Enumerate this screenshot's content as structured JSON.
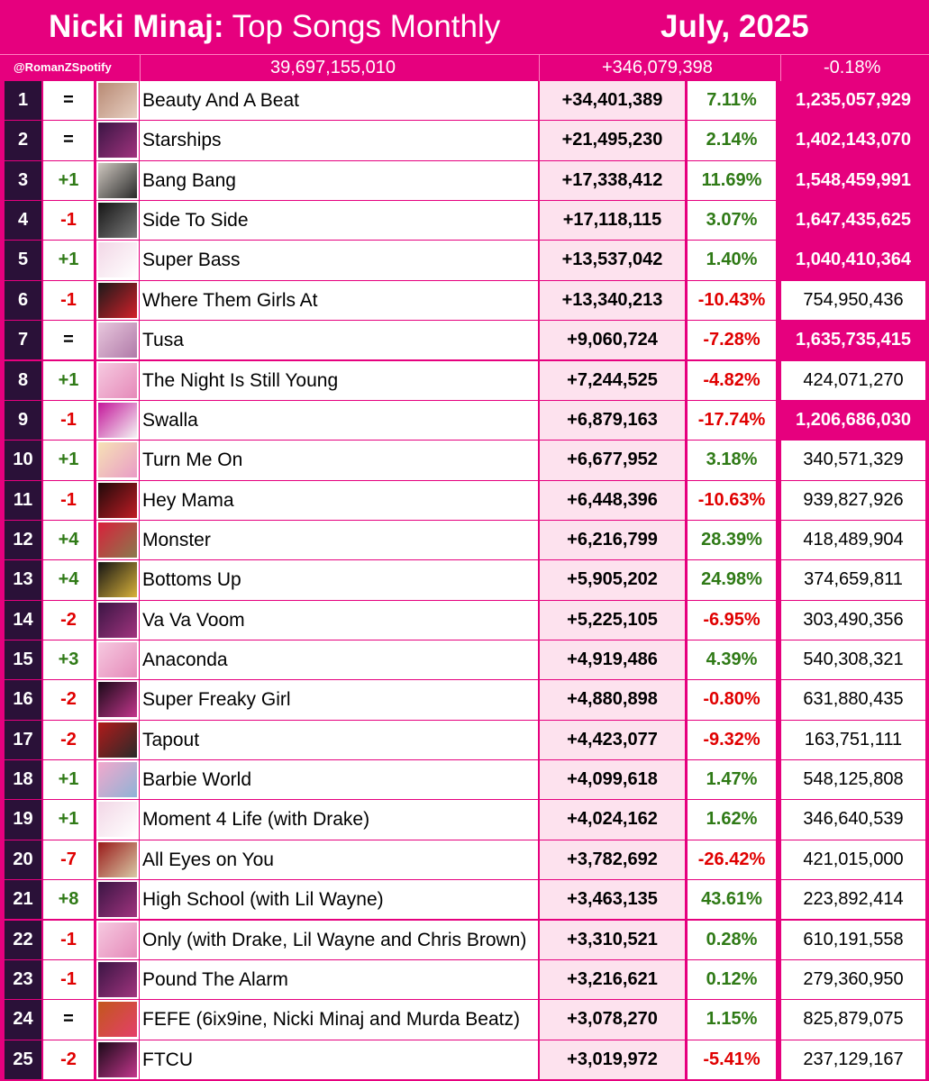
{
  "header": {
    "artist": "Nicki Minaj:",
    "subtitle": "Top Songs Monthly",
    "date": "July, 2025"
  },
  "summary": {
    "handle": "@RomanZSpotify",
    "total": "39,697,155,010",
    "gain": "+346,079,398",
    "change_pct": "-0.18%"
  },
  "colors": {
    "brand_pink": "#e6007e",
    "rank_bg": "#2a1138",
    "gain_bg": "#fde2ee",
    "positive": "#2f7a16",
    "negative": "#e00000"
  },
  "chart_data": {
    "type": "table",
    "columns": [
      "rank",
      "movement",
      "cover",
      "song",
      "monthly_gain",
      "change_pct",
      "total_streams"
    ],
    "rows": [
      {
        "rank": "1",
        "move": "=",
        "song": "Beauty And A Beat",
        "gain": "+34,401,389",
        "pct": "7.11%",
        "total": "1,235,057,929",
        "milestone": true,
        "cover_colors": [
          "#b88a74",
          "#e7cfc2"
        ]
      },
      {
        "rank": "2",
        "move": "=",
        "song": "Starships",
        "gain": "+21,495,230",
        "pct": "2.14%",
        "total": "1,402,143,070",
        "milestone": true,
        "cover_colors": [
          "#3b1544",
          "#a0347e"
        ]
      },
      {
        "rank": "3",
        "move": "+1",
        "song": "Bang Bang",
        "gain": "+17,338,412",
        "pct": "11.69%",
        "total": "1,548,459,991",
        "milestone": true,
        "cover_colors": [
          "#cfc8c0",
          "#2a2a2a"
        ]
      },
      {
        "rank": "4",
        "move": "-1",
        "song": "Side To Side",
        "gain": "+17,118,115",
        "pct": "3.07%",
        "total": "1,647,435,625",
        "milestone": true,
        "cover_colors": [
          "#161616",
          "#7a7a7a"
        ]
      },
      {
        "rank": "5",
        "move": "+1",
        "song": "Super Bass",
        "gain": "+13,537,042",
        "pct": "1.40%",
        "total": "1,040,410,364",
        "milestone": true,
        "cover_colors": [
          "#f2d7e6",
          "#ffffff"
        ]
      },
      {
        "rank": "6",
        "move": "-1",
        "song": "Where Them Girls At",
        "gain": "+13,340,213",
        "pct": "-10.43%",
        "total": "754,950,436",
        "milestone": false,
        "cover_colors": [
          "#1a1a1a",
          "#d3202a"
        ]
      },
      {
        "rank": "7",
        "move": "=",
        "song": "Tusa",
        "gain": "+9,060,724",
        "pct": "-7.28%",
        "total": "1,635,735,415",
        "milestone": true,
        "cover_colors": [
          "#e8c7dd",
          "#b07aa8"
        ]
      },
      {
        "rank": "8",
        "move": "+1",
        "song": "The Night Is Still Young",
        "gain": "+7,244,525",
        "pct": "-4.82%",
        "total": "424,071,270",
        "milestone": false,
        "cover_colors": [
          "#f6c9e0",
          "#e58ab9"
        ]
      },
      {
        "rank": "9",
        "move": "-1",
        "song": "Swalla",
        "gain": "+6,879,163",
        "pct": "-17.74%",
        "total": "1,206,686,030",
        "milestone": true,
        "cover_colors": [
          "#c4169a",
          "#f4f4f4"
        ]
      },
      {
        "rank": "10",
        "move": "+1",
        "song": "Turn Me On",
        "gain": "+6,677,952",
        "pct": "3.18%",
        "total": "340,571,329",
        "milestone": false,
        "cover_colors": [
          "#f6e1b5",
          "#e99cc6"
        ]
      },
      {
        "rank": "11",
        "move": "-1",
        "song": "Hey Mama",
        "gain": "+6,448,396",
        "pct": "-10.63%",
        "total": "939,827,926",
        "milestone": false,
        "cover_colors": [
          "#1f0a0a",
          "#c01c25"
        ]
      },
      {
        "rank": "12",
        "move": "+4",
        "song": "Monster",
        "gain": "+6,216,799",
        "pct": "28.39%",
        "total": "418,489,904",
        "milestone": false,
        "cover_colors": [
          "#d8203a",
          "#8a7a4e"
        ]
      },
      {
        "rank": "13",
        "move": "+4",
        "song": "Bottoms Up",
        "gain": "+5,905,202",
        "pct": "24.98%",
        "total": "374,659,811",
        "milestone": false,
        "cover_colors": [
          "#141414",
          "#d9b23a"
        ]
      },
      {
        "rank": "14",
        "move": "-2",
        "song": "Va Va Voom",
        "gain": "+5,225,105",
        "pct": "-6.95%",
        "total": "303,490,356",
        "milestone": false,
        "cover_colors": [
          "#3b1544",
          "#a0347e"
        ]
      },
      {
        "rank": "15",
        "move": "+3",
        "song": "Anaconda",
        "gain": "+4,919,486",
        "pct": "4.39%",
        "total": "540,308,321",
        "milestone": false,
        "cover_colors": [
          "#f6c9e0",
          "#e58ab9"
        ]
      },
      {
        "rank": "16",
        "move": "-2",
        "song": "Super Freaky Girl",
        "gain": "+4,880,898",
        "pct": "-0.80%",
        "total": "631,880,435",
        "milestone": false,
        "cover_colors": [
          "#1a0a18",
          "#c2368c"
        ]
      },
      {
        "rank": "17",
        "move": "-2",
        "song": "Tapout",
        "gain": "+4,423,077",
        "pct": "-9.32%",
        "total": "163,751,111",
        "milestone": false,
        "cover_colors": [
          "#b11a1a",
          "#2a2a2a"
        ]
      },
      {
        "rank": "18",
        "move": "+1",
        "song": "Barbie World",
        "gain": "+4,099,618",
        "pct": "1.47%",
        "total": "548,125,808",
        "milestone": false,
        "cover_colors": [
          "#f2a8cc",
          "#8fb3d6"
        ]
      },
      {
        "rank": "19",
        "move": "+1",
        "song": "Moment 4 Life (with Drake)",
        "gain": "+4,024,162",
        "pct": "1.62%",
        "total": "346,640,539",
        "milestone": false,
        "cover_colors": [
          "#f2d7e6",
          "#ffffff"
        ]
      },
      {
        "rank": "20",
        "move": "-7",
        "song": "All Eyes on You",
        "gain": "+3,782,692",
        "pct": "-26.42%",
        "total": "421,015,000",
        "milestone": false,
        "cover_colors": [
          "#9a1a1a",
          "#d8c9a6"
        ]
      },
      {
        "rank": "21",
        "move": "+8",
        "song": "High School (with Lil Wayne)",
        "gain": "+3,463,135",
        "pct": "43.61%",
        "total": "223,892,414",
        "milestone": false,
        "cover_colors": [
          "#3b1544",
          "#a0347e"
        ]
      },
      {
        "rank": "22",
        "move": "-1",
        "song": "Only (with Drake, Lil Wayne and Chris Brown)",
        "gain": "+3,310,521",
        "pct": "0.28%",
        "total": "610,191,558",
        "milestone": false,
        "cover_colors": [
          "#f6c9e0",
          "#e58ab9"
        ]
      },
      {
        "rank": "23",
        "move": "-1",
        "song": "Pound The Alarm",
        "gain": "+3,216,621",
        "pct": "0.12%",
        "total": "279,360,950",
        "milestone": false,
        "cover_colors": [
          "#3b1544",
          "#a0347e"
        ]
      },
      {
        "rank": "24",
        "move": "=",
        "song": "FEFE (6ix9ine, Nicki Minaj and Murda Beatz)",
        "gain": "+3,078,270",
        "pct": "1.15%",
        "total": "825,879,075",
        "milestone": false,
        "cover_colors": [
          "#c2571c",
          "#e43f6a"
        ]
      },
      {
        "rank": "25",
        "move": "-2",
        "song": "FTCU",
        "gain": "+3,019,972",
        "pct": "-5.41%",
        "total": "237,129,167",
        "milestone": false,
        "cover_colors": [
          "#1a0a18",
          "#c2368c"
        ]
      }
    ]
  }
}
